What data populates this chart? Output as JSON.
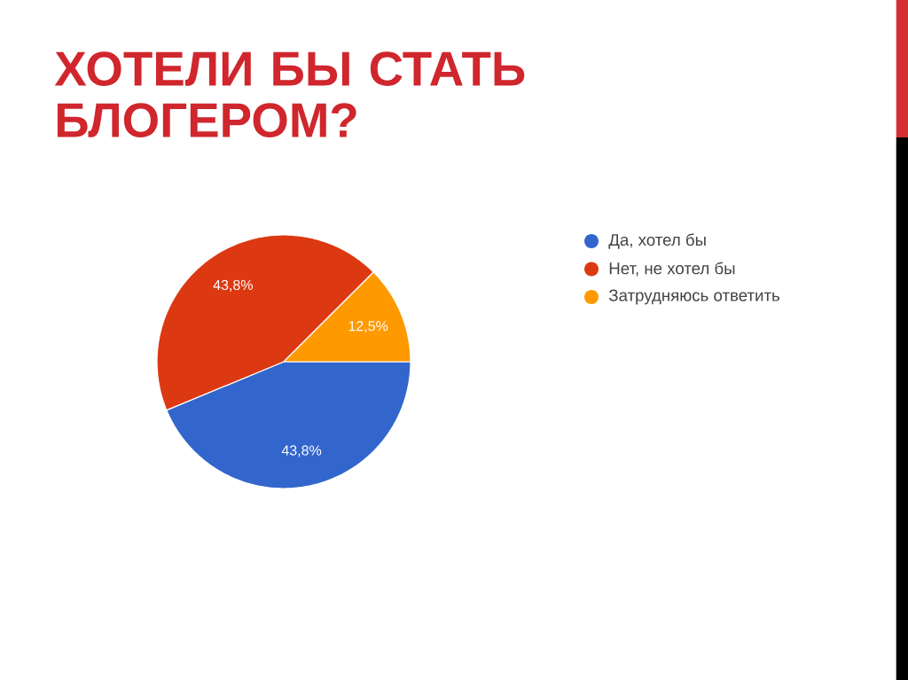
{
  "chart_data": {
    "type": "pie",
    "title": "ХОТЕЛИ БЫ СТАТЬ БЛОГЕРОМ?",
    "categories": [
      "Да, хотел бы",
      "Нет, не хотел бы",
      "Затрудняюсь ответить"
    ],
    "values": [
      43.8,
      43.8,
      12.5
    ],
    "colors": [
      "#3366cc",
      "#dc3912",
      "#ff9900"
    ],
    "value_labels": [
      "43,8%",
      "43,8%",
      "12,5%"
    ],
    "legend": "right"
  }
}
